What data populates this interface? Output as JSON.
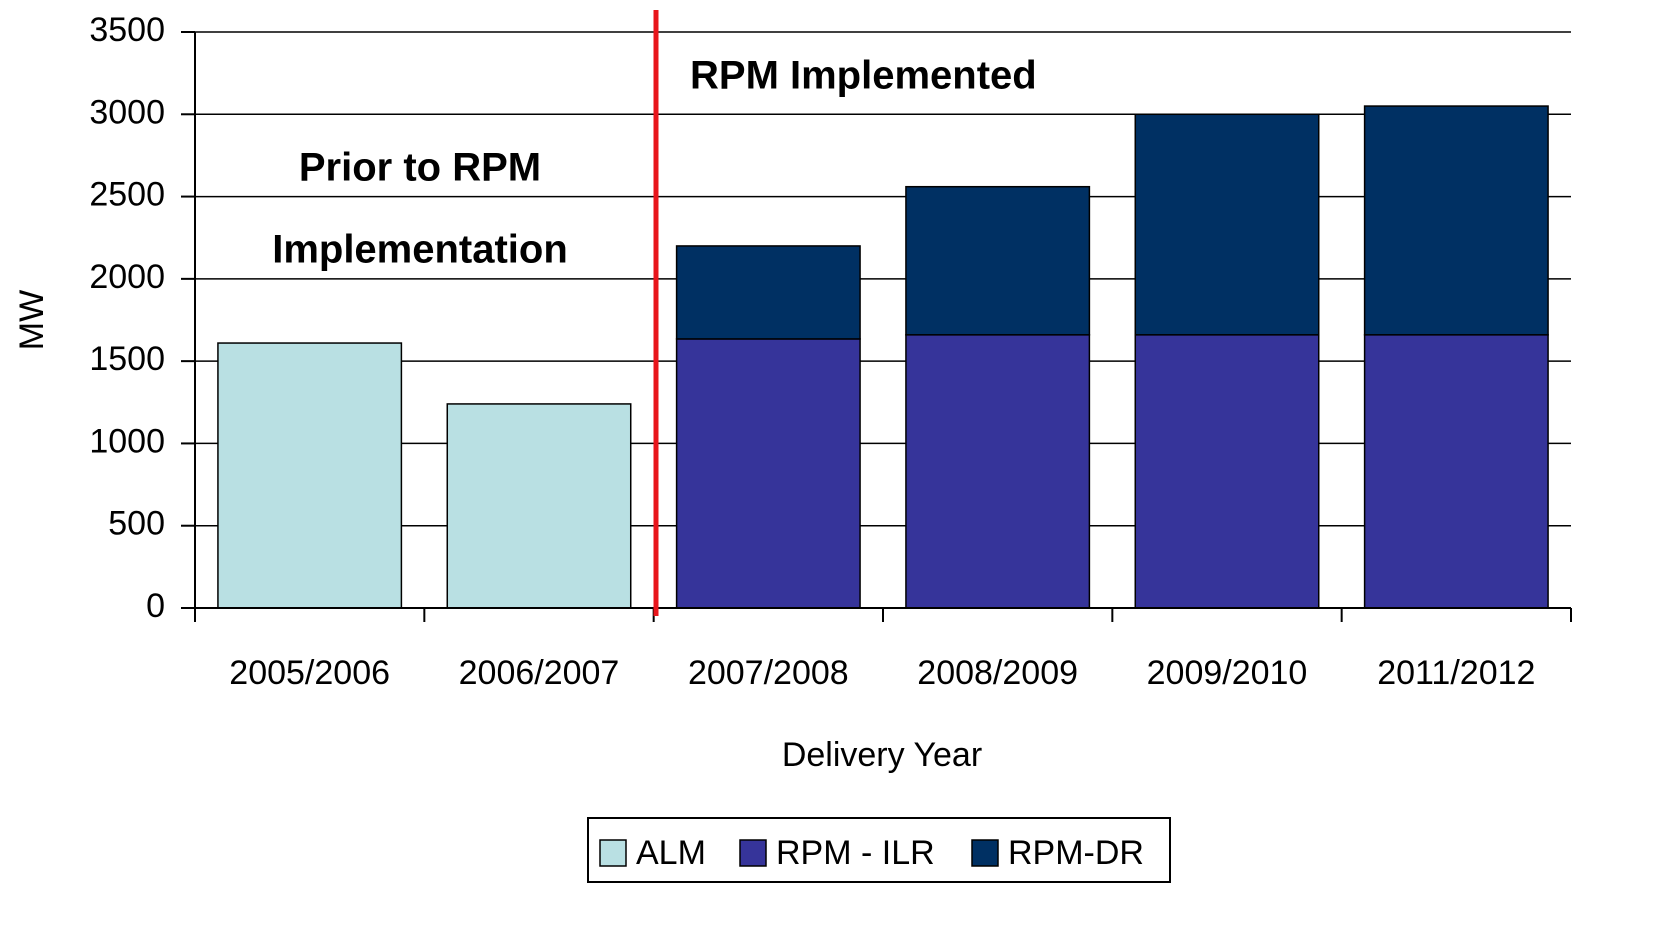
{
  "chart_data": {
    "type": "stacked_bar",
    "categories": [
      "2005/2006",
      "2006/2007",
      "2007/2008",
      "2008/2009",
      "2009/2010",
      "2011/2012"
    ],
    "series": [
      {
        "name": "ALM",
        "color": "#b9e0e3",
        "values": [
          1610,
          1240,
          null,
          null,
          null,
          null
        ]
      },
      {
        "name": "RPM - ILR",
        "color": "#36349a",
        "values": [
          null,
          null,
          1635,
          1660,
          1660,
          1660
        ]
      },
      {
        "name": "RPM-DR",
        "color": "#003063",
        "values": [
          null,
          null,
          565,
          900,
          1340,
          1390
        ]
      }
    ],
    "xlabel": "Delivery Year",
    "ylabel": "MW",
    "ylim": [
      0,
      3500
    ],
    "yticks": [
      0,
      500,
      1000,
      1500,
      2000,
      2500,
      3000,
      3500
    ],
    "grid": true,
    "annotations": [
      "Prior to RPM",
      "Implementation",
      "RPM Implemented"
    ],
    "legend": "bottom"
  }
}
